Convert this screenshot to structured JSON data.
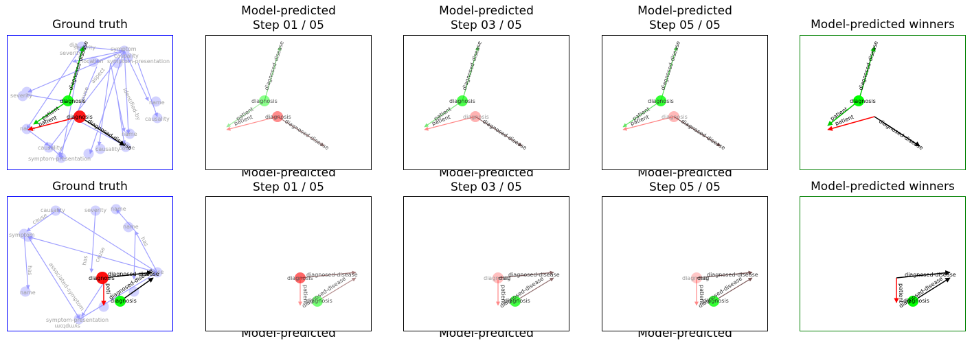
{
  "colors": {
    "ground_truth_frame": "#0000ff",
    "winners_frame": "#008000",
    "step_frame": "#000000",
    "faded_node": "#8080ff",
    "focus_red": "#ff0000",
    "focus_green": "#00ff00",
    "faded_label": "#a0a0a0"
  },
  "titles": {
    "ground_truth": "Ground truth",
    "model_predicted": "Model-predicted",
    "step_01": "Step 01 / 05",
    "step_03": "Step 03 / 05",
    "step_05": "Step 05 / 05",
    "winners": "Model-predicted winners"
  },
  "labels": {
    "diagnosis": "diagnosis",
    "diagnosed_disease": "diagnosed-disease",
    "patient": "patient",
    "severity": "severity",
    "causality": "causality",
    "name": "name",
    "symptom_presentation": "symptom-presentation",
    "symptom": "symptom",
    "has": "has",
    "associated_symptom": "associated-symptom",
    "cause": "cause",
    "identified_by": "identified-by",
    "aspect": "aspect",
    "location": "location",
    "patient_short": "pati",
    "dia": "dia",
    "diag": "diag"
  }
}
